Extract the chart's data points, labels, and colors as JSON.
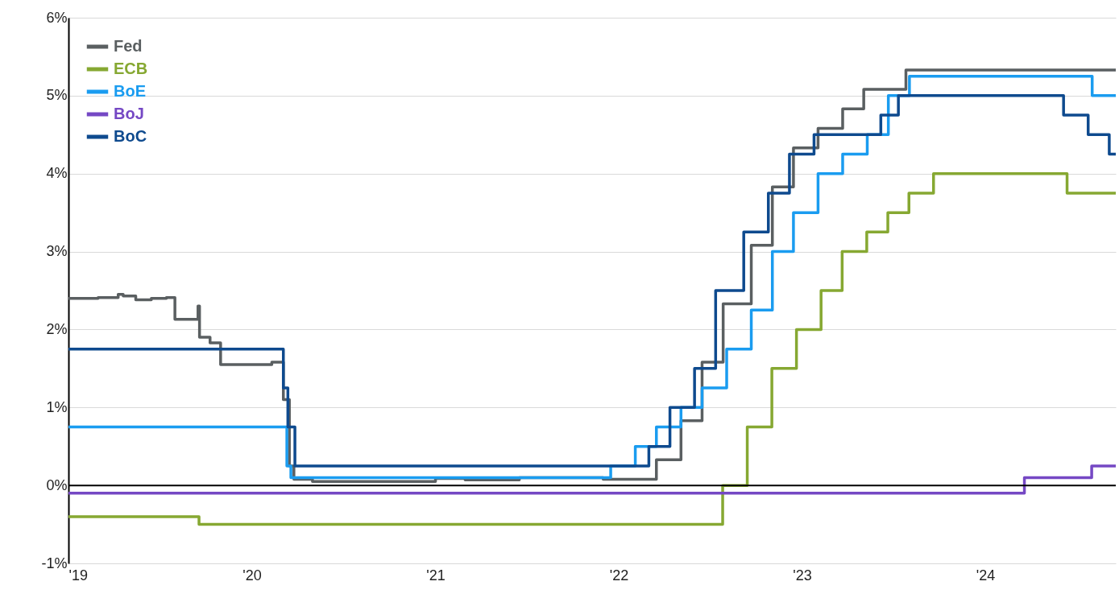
{
  "chart_data": {
    "type": "step",
    "xlim": [
      "2019-01-01",
      "2024-09-17"
    ],
    "ylim": [
      -1,
      6
    ],
    "xticks": [
      {
        "value": "2019-01-01",
        "label": "'19"
      },
      {
        "value": "2020-01-01",
        "label": "'20"
      },
      {
        "value": "2021-01-01",
        "label": "'21"
      },
      {
        "value": "2022-01-01",
        "label": "'22"
      },
      {
        "value": "2023-01-01",
        "label": "'23"
      },
      {
        "value": "2024-01-01",
        "label": "'24"
      }
    ],
    "yticks": [
      {
        "value": -1,
        "label": "-1%"
      },
      {
        "value": 0,
        "label": "0%"
      },
      {
        "value": 1,
        "label": "1%"
      },
      {
        "value": 2,
        "label": "2%"
      },
      {
        "value": 3,
        "label": "3%"
      },
      {
        "value": 4,
        "label": "4%"
      },
      {
        "value": 5,
        "label": "5%"
      },
      {
        "value": 6,
        "label": "6%"
      }
    ],
    "grid": "y",
    "legend": "top left",
    "line_style": "solid",
    "ref_lines": [
      {
        "axis": "y",
        "value": 0,
        "color": "#000000"
      }
    ],
    "series": [
      {
        "name": "Fed",
        "color": "#5a5f61",
        "x": [
          "2019-01-01",
          "2019-03-01",
          "2019-04-10",
          "2019-04-20",
          "2019-05-15",
          "2019-06-15",
          "2019-07-15",
          "2019-08-01",
          "2019-09-16",
          "2019-09-19",
          "2019-10-10",
          "2019-10-31",
          "2020-02-10",
          "2020-03-04",
          "2020-03-16",
          "2020-03-25",
          "2020-05-01",
          "2021-01-01",
          "2021-03-01",
          "2021-06-17",
          "2021-12-01",
          "2022-03-17",
          "2022-05-05",
          "2022-06-16",
          "2022-07-28",
          "2022-09-22",
          "2022-11-03",
          "2022-12-15",
          "2023-02-02",
          "2023-03-23",
          "2023-05-04",
          "2023-07-27",
          "2024-09-17"
        ],
        "values": [
          2.4,
          2.41,
          2.45,
          2.43,
          2.38,
          2.4,
          2.41,
          2.13,
          2.3,
          1.9,
          1.83,
          1.55,
          1.58,
          1.1,
          0.25,
          0.08,
          0.05,
          0.09,
          0.07,
          0.1,
          0.08,
          0.33,
          0.83,
          1.58,
          2.33,
          3.08,
          3.83,
          4.33,
          4.58,
          4.83,
          5.08,
          5.33,
          5.33
        ]
      },
      {
        "name": "ECB",
        "color": "#86a832",
        "x": [
          "2019-01-01",
          "2019-09-18",
          "2022-07-27",
          "2022-09-14",
          "2022-11-02",
          "2022-12-21",
          "2023-02-08",
          "2023-03-22",
          "2023-05-10",
          "2023-06-21",
          "2023-08-02",
          "2023-09-20",
          "2024-06-12",
          "2024-09-17"
        ],
        "values": [
          -0.4,
          -0.5,
          0,
          0.75,
          1.5,
          2,
          2.5,
          3,
          3.25,
          3.5,
          3.75,
          4,
          3.75,
          3.75
        ]
      },
      {
        "name": "BoE",
        "color": "#1a9cf0",
        "x": [
          "2019-01-01",
          "2020-03-11",
          "2020-03-19",
          "2021-12-16",
          "2022-02-03",
          "2022-03-17",
          "2022-05-05",
          "2022-06-16",
          "2022-08-04",
          "2022-09-22",
          "2022-11-03",
          "2022-12-15",
          "2023-02-02",
          "2023-03-23",
          "2023-05-11",
          "2023-06-22",
          "2023-08-03",
          "2024-08-01",
          "2024-09-17"
        ],
        "values": [
          0.75,
          0.25,
          0.1,
          0.25,
          0.5,
          0.75,
          1,
          1.25,
          1.75,
          2.25,
          3,
          3.5,
          4,
          4.25,
          4.5,
          5,
          5.25,
          5,
          5
        ]
      },
      {
        "name": "BoJ",
        "color": "#7548c4",
        "x": [
          "2019-01-01",
          "2024-03-19",
          "2024-07-31",
          "2024-09-17"
        ],
        "values": [
          -0.1,
          0.1,
          0.25,
          0.25
        ]
      },
      {
        "name": "BoC",
        "color": "#0e4a8e",
        "x": [
          "2019-01-01",
          "2020-03-04",
          "2020-03-13",
          "2020-03-27",
          "2022-03-02",
          "2022-04-13",
          "2022-06-01",
          "2022-07-13",
          "2022-09-07",
          "2022-10-26",
          "2022-12-07",
          "2023-01-25",
          "2023-06-07",
          "2023-07-12",
          "2024-06-05",
          "2024-07-24",
          "2024-09-04",
          "2024-09-17"
        ],
        "values": [
          1.75,
          1.25,
          0.75,
          0.25,
          0.5,
          1,
          1.5,
          2.5,
          3.25,
          3.75,
          4.25,
          4.5,
          4.75,
          5,
          4.75,
          4.5,
          4.25,
          4.25
        ]
      }
    ]
  }
}
